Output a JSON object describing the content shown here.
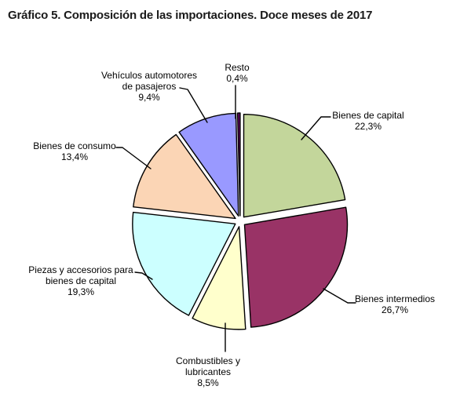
{
  "title": "Gráfico 5. Composición de las importaciones. Doce meses de 2017",
  "chart_data": {
    "type": "pie",
    "title": "Gráfico 5. Composición de las importaciones. Doce meses de 2017",
    "units": "percent",
    "start_angle_deg": 0,
    "direction": "clockwise",
    "exploded": true,
    "outline_color": "#000000",
    "label_color": "#000000",
    "background_color": "#ffffff",
    "segments": [
      {
        "key": "bienes-de-capital",
        "label": "Bienes de capital",
        "label_lines": [
          "Bienes de capital"
        ],
        "value_pct": 22.3,
        "pct_label": "22,3%",
        "color": "#C3D69B"
      },
      {
        "key": "bienes-intermedios",
        "label": "Bienes intermedios",
        "label_lines": [
          "Bienes intermedios"
        ],
        "value_pct": 26.7,
        "pct_label": "26,7%",
        "color": "#993366"
      },
      {
        "key": "combustibles-y-lubricantes",
        "label": "Combustibles y lubricantes",
        "label_lines": [
          "Combustibles y",
          "lubricantes"
        ],
        "value_pct": 8.5,
        "pct_label": "8,5%",
        "color": "#FFFFCC"
      },
      {
        "key": "piezas-y-accesorios-para-bienes-de-capital",
        "label": "Piezas y accesorios para bienes de capital",
        "label_lines": [
          "Piezas y accesorios para",
          "bienes de capital"
        ],
        "value_pct": 19.3,
        "pct_label": "19,3%",
        "color": "#CCFFFF"
      },
      {
        "key": "bienes-de-consumo",
        "label": "Bienes de consumo",
        "label_lines": [
          "Bienes de consumo"
        ],
        "value_pct": 13.4,
        "pct_label": "13,4%",
        "color": "#FBD5B5"
      },
      {
        "key": "vehiculos-automotores-de-pasajeros",
        "label": "Vehículos automotores de pasajeros",
        "label_lines": [
          "Vehículos automotores",
          "de pasajeros"
        ],
        "value_pct": 9.4,
        "pct_label": "9,4%",
        "color": "#9999FF"
      },
      {
        "key": "resto",
        "label": "Resto",
        "label_lines": [
          "Resto"
        ],
        "value_pct": 0.4,
        "pct_label": "0,4%",
        "color": "#660066"
      }
    ]
  }
}
